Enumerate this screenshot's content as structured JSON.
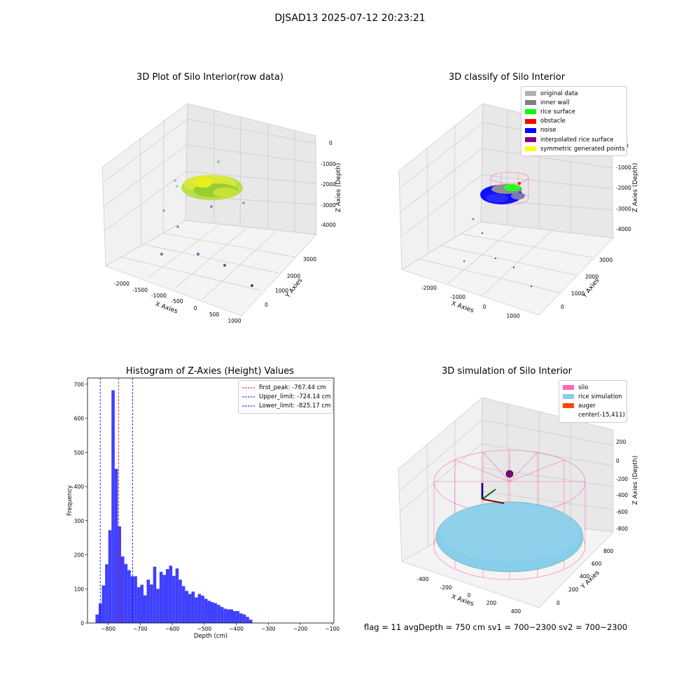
{
  "figure": {
    "suptitle": "DJSAD13 2025-07-12 20:23:21",
    "footer": "flag = 11   avgDepth = 750 cm  sv1 = 700~2300  sv2 = 700~2300"
  },
  "raw_plot": {
    "title": "3D Plot of Silo Interior(row data)",
    "xlabel": "X Axies",
    "ylabel": "Y Axies",
    "zlabel": "Z Axies (Depth)",
    "xticks": [
      "-2000",
      "-1500",
      "-1000",
      "-500",
      "0",
      "500",
      "1000"
    ],
    "yticks": [
      "0",
      "1000",
      "2000",
      "3000"
    ],
    "zticks": [
      "0",
      "-1000",
      "-2000",
      "-3000",
      "-4000"
    ]
  },
  "classify_plot": {
    "title": "3D classify of Silo Interior",
    "xlabel": "X Axies",
    "ylabel": "Y Axies",
    "zlabel": "Z Axies (Depth)",
    "xticks": [
      "-2000",
      "-1000",
      "0",
      "1000"
    ],
    "yticks": [
      "0",
      "1000",
      "2000",
      "3000"
    ],
    "zticks": [
      "0",
      "-1000",
      "-2000",
      "-3000",
      "-4000"
    ],
    "legend": [
      {
        "label": "original data",
        "color": "#b0b0b0"
      },
      {
        "label": "inner wall",
        "color": "#808080"
      },
      {
        "label": "rice surface",
        "color": "#00ff00"
      },
      {
        "label": "obstacle",
        "color": "#ff0000"
      },
      {
        "label": "noise",
        "color": "#0000ff"
      },
      {
        "label": "interpolated rice surface",
        "color": "#800080"
      },
      {
        "label": "symmetric generated points",
        "color": "#ffff00"
      }
    ]
  },
  "sim_plot": {
    "title": "3D simulation of Silo Interior",
    "xlabel": "X Axies",
    "ylabel": "Y Axies",
    "zlabel": "Z Axies (Depth)",
    "xticks": [
      "-400",
      "-200",
      "0",
      "200",
      "400"
    ],
    "yticks": [
      "0",
      "200",
      "400",
      "600",
      "800"
    ],
    "zticks": [
      "200",
      "0",
      "-200",
      "-400",
      "-600",
      "-800"
    ],
    "legend": [
      {
        "label": "silo",
        "color": "#ff69b4"
      },
      {
        "label": "rice simulation",
        "color": "#87ceeb"
      },
      {
        "label": "auger",
        "color": "#ff4500"
      },
      {
        "label": "center(-15,411)",
        "color": ""
      }
    ]
  },
  "chart_data": [
    {
      "type": "bar",
      "title": "Histogram of Z-Axies (Height) Values",
      "xlabel": "Depth (cm)",
      "ylabel": "Frequency",
      "xlim": [
        -865,
        -95
      ],
      "ylim": [
        0,
        718
      ],
      "xticks": [
        -800,
        -700,
        -600,
        -500,
        -400,
        -300,
        -200,
        -100
      ],
      "yticks": [
        0,
        100,
        200,
        300,
        400,
        500,
        600,
        700
      ],
      "bin_width": 10,
      "bin_start": -840,
      "bar_color": "#4040ff",
      "values": [
        25,
        57,
        110,
        172,
        272,
        682,
        452,
        283,
        195,
        173,
        155,
        137,
        137,
        105,
        112,
        81,
        127,
        113,
        165,
        100,
        150,
        141,
        158,
        168,
        138,
        160,
        127,
        108,
        94,
        85,
        92,
        75,
        85,
        80,
        71,
        65,
        61,
        58,
        53,
        47,
        42,
        40,
        40,
        35,
        35,
        28,
        25,
        18,
        10
      ],
      "lines": [
        {
          "label": "first_peak: -767.44 cm",
          "x": -767.44,
          "color": "#ff0000"
        },
        {
          "label": "Upper_limit: -724.14 cm",
          "x": -724.14,
          "color": "#0000cc"
        },
        {
          "label": "Lower_limit: -825.17 cm",
          "x": -825.17,
          "color": "#0000cc"
        }
      ]
    }
  ]
}
